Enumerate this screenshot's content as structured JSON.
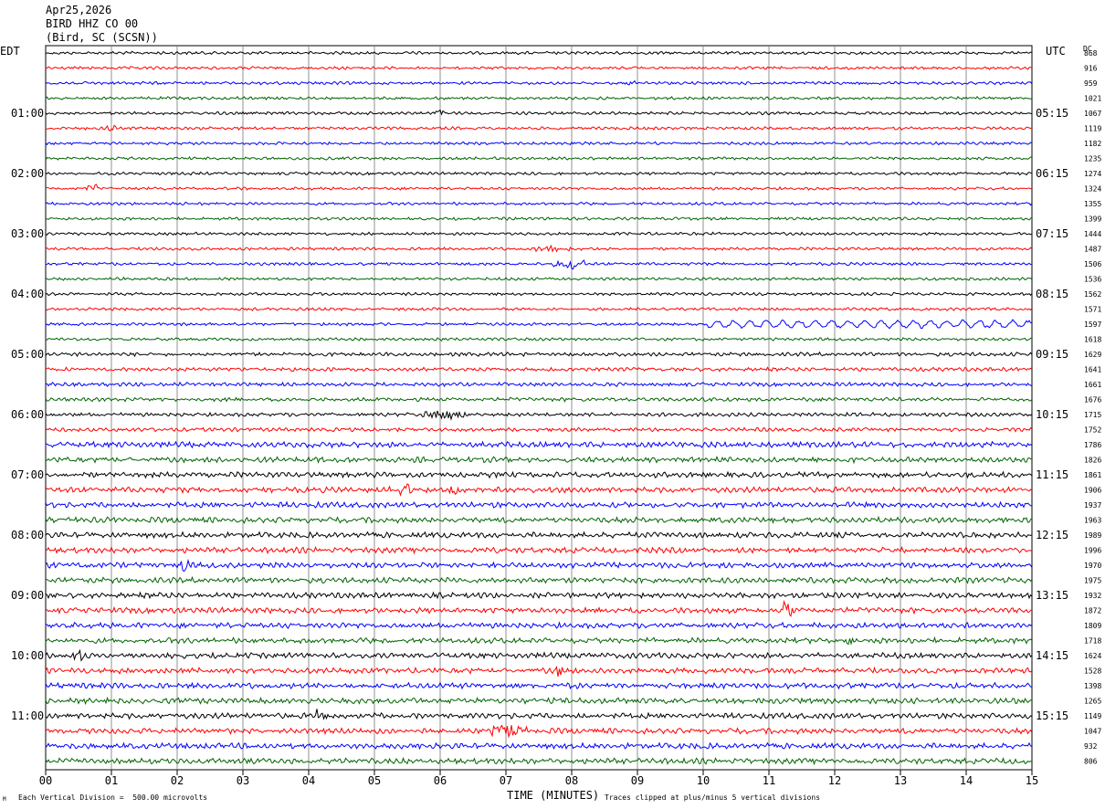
{
  "header": {
    "date": "Apr25,2026",
    "station": "BIRD HHZ CO 00",
    "location": "(Bird, SC (SCSN))"
  },
  "labels": {
    "left_tz": "EDT",
    "right_tz": "UTC",
    "dc": "DC"
  },
  "footer": {
    "division_note": "Each Vertical Division =  500.00 microvolts",
    "clip_note": "Traces clipped at plus/minus 5 vertical divisions",
    "corner_mark": "M"
  },
  "chart_data": {
    "type": "line",
    "title": "BIRD HHZ CO 00",
    "xlabel": "TIME (MINUTES)",
    "ylabel": "",
    "xlim": [
      0,
      15
    ],
    "x_ticks": [
      "00",
      "01",
      "02",
      "03",
      "04",
      "05",
      "06",
      "07",
      "08",
      "09",
      "10",
      "11",
      "12",
      "13",
      "14",
      "15"
    ],
    "trace_count": 48,
    "trace_colors": [
      "#000000",
      "#ff0000",
      "#0000ff",
      "#006400"
    ],
    "left_hour_labels": [
      "01:00",
      "02:00",
      "03:00",
      "04:00",
      "05:00",
      "06:00",
      "07:00",
      "08:00",
      "09:00",
      "10:00",
      "11:00"
    ],
    "right_hour_labels": [
      "05:15",
      "06:15",
      "07:15",
      "08:15",
      "09:15",
      "10:15",
      "11:15",
      "12:15",
      "13:15",
      "14:15",
      "15:15"
    ],
    "dc_offsets": [
      "868",
      "916",
      "959",
      "1021",
      "1067",
      "1119",
      "1182",
      "1235",
      "1274",
      "1324",
      "1355",
      "1399",
      "1444",
      "1487",
      "1506",
      "1536",
      "1562",
      "1571",
      "1597",
      "1618",
      "1629",
      "1641",
      "1661",
      "1676",
      "1715",
      "1752",
      "1786",
      "1826",
      "1861",
      "1906",
      "1937",
      "1963",
      "1989",
      "1996",
      "1970",
      "1975",
      "1932",
      "1872",
      "1809",
      "1718",
      "1624",
      "1528",
      "1398",
      "1265",
      "1149",
      "1047",
      "932",
      "806"
    ],
    "events": [
      {
        "trace": 2,
        "minute": 8.9,
        "amplitude": 2,
        "label": "small"
      },
      {
        "trace": 4,
        "minute": 6.0,
        "amplitude": 3,
        "label": "spike"
      },
      {
        "trace": 5,
        "minute": 1.0,
        "amplitude": 4,
        "label": "spike"
      },
      {
        "trace": 9,
        "minute": 0.7,
        "amplitude": 4,
        "label": "spike"
      },
      {
        "trace": 13,
        "minute": 7.7,
        "amplitude": 5,
        "label": "burst"
      },
      {
        "trace": 14,
        "minute": 8.0,
        "amplitude": 7,
        "label": "burst"
      },
      {
        "trace": 18,
        "minute": 12.0,
        "amplitude": 6,
        "label": "long-period"
      },
      {
        "trace": 24,
        "minute": 6.05,
        "amplitude": 9,
        "label": "burst"
      },
      {
        "trace": 29,
        "minute": 5.5,
        "amplitude": 6,
        "label": "burst"
      },
      {
        "trace": 29,
        "minute": 6.2,
        "amplitude": 6,
        "label": "burst"
      },
      {
        "trace": 34,
        "minute": 2.1,
        "amplitude": 7,
        "label": "spike"
      },
      {
        "trace": 37,
        "minute": 11.3,
        "amplitude": 9,
        "label": "spike"
      },
      {
        "trace": 39,
        "minute": 12.2,
        "amplitude": 6,
        "label": "spike"
      },
      {
        "trace": 40,
        "minute": 0.5,
        "amplitude": 5,
        "label": "spike"
      },
      {
        "trace": 41,
        "minute": 7.8,
        "amplitude": 5,
        "label": "spike"
      },
      {
        "trace": 44,
        "minute": 4.2,
        "amplitude": 5,
        "label": "spike"
      },
      {
        "trace": 45,
        "minute": 7.0,
        "amplitude": 9,
        "label": "burst"
      }
    ]
  }
}
